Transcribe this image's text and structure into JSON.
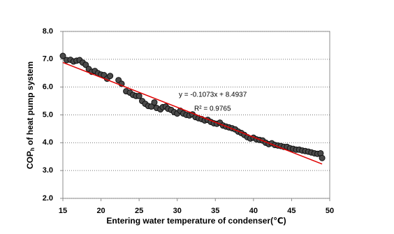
{
  "chart_data": {
    "type": "scatter",
    "x_label": "Entering water temperature of condenser(℃)",
    "y_label": {
      "main": "COP",
      "sub": "h",
      "rest": " of heat pump system"
    },
    "annotations": [
      "y = -0.1073x + 8.4937",
      "R² = 0.9765"
    ],
    "xlim": [
      15,
      50
    ],
    "xticks": [
      15,
      20,
      25,
      30,
      35,
      40,
      45,
      50
    ],
    "ylim": [
      2,
      8
    ],
    "yticks": [
      {
        "value": 2,
        "label": "2.0"
      },
      {
        "value": 3,
        "label": "3.0"
      },
      {
        "value": 4,
        "label": "4.0"
      },
      {
        "value": 5,
        "label": "5.0"
      },
      {
        "value": 6,
        "label": "6.0"
      },
      {
        "value": 7,
        "label": "7.0"
      },
      {
        "value": 8,
        "label": "8.0"
      }
    ],
    "grid": true,
    "trendline": {
      "slope": -0.1073,
      "intercept": 8.4937,
      "x": [
        15,
        49
      ],
      "color": "#e00000"
    },
    "series": [
      {
        "color": "#4a4a4a",
        "x": [
          15.0,
          15.5,
          16.0,
          16.4,
          16.8,
          17.2,
          17.6,
          18.0,
          18.4,
          18.8,
          19.2,
          19.6,
          20.0,
          20.4,
          20.8,
          21.2,
          22.3,
          22.7,
          23.3,
          23.8,
          24.2,
          24.6,
          25.0,
          25.4,
          25.8,
          26.2,
          26.6,
          27.0,
          27.3,
          27.8,
          28.1,
          28.5,
          28.8,
          29.2,
          29.6,
          30.0,
          30.4,
          30.8,
          31.2,
          31.6,
          32.0,
          32.4,
          32.8,
          33.2,
          33.6,
          34.0,
          34.4,
          34.8,
          35.2,
          35.6,
          36.0,
          36.4,
          36.8,
          37.2,
          37.6,
          38.0,
          38.4,
          38.8,
          39.2,
          39.6,
          40.0,
          40.4,
          40.8,
          41.2,
          41.6,
          42.0,
          42.4,
          42.8,
          43.2,
          43.6,
          44.0,
          44.4,
          44.8,
          45.2,
          45.6,
          46.0,
          46.4,
          46.8,
          47.2,
          47.6,
          48.0,
          48.4,
          48.8,
          49.0
        ],
        "values": [
          7.12,
          6.97,
          6.98,
          6.92,
          6.95,
          6.97,
          6.88,
          6.8,
          6.65,
          6.55,
          6.58,
          6.5,
          6.45,
          6.43,
          6.3,
          6.4,
          6.25,
          6.12,
          5.85,
          5.8,
          5.72,
          5.68,
          5.68,
          5.5,
          5.4,
          5.32,
          5.3,
          5.45,
          5.25,
          5.2,
          5.28,
          5.3,
          5.22,
          5.18,
          5.1,
          5.05,
          5.15,
          5.05,
          5.0,
          4.98,
          5.02,
          4.92,
          4.88,
          4.85,
          4.8,
          4.82,
          4.75,
          4.7,
          4.68,
          4.72,
          4.62,
          4.58,
          4.55,
          4.52,
          4.48,
          4.4,
          4.35,
          4.28,
          4.2,
          4.15,
          4.18,
          4.12,
          4.1,
          4.08,
          4.0,
          3.95,
          3.98,
          3.92,
          3.9,
          3.88,
          3.85,
          3.85,
          3.8,
          3.78,
          3.75,
          3.75,
          3.72,
          3.7,
          3.68,
          3.65,
          3.62,
          3.6,
          3.62,
          3.45
        ]
      }
    ]
  }
}
